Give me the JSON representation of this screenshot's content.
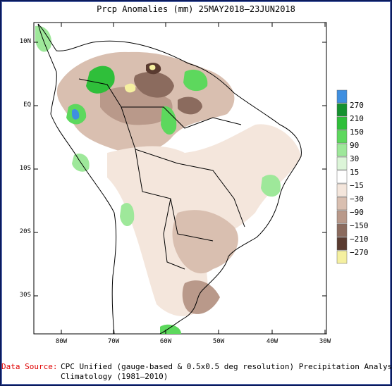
{
  "title": "Prcp Anomalies (mm) 25MAY2018–23JUN2018",
  "latitude_labels": [
    "10N",
    "EQ",
    "10S",
    "20S",
    "30S"
  ],
  "longitude_labels": [
    "80W",
    "70W",
    "60W",
    "50W",
    "40W",
    "30W"
  ],
  "legend": {
    "labels": [
      "270",
      "210",
      "150",
      "90",
      "30",
      "15",
      "−15",
      "−30",
      "−90",
      "−150",
      "−210",
      "−270"
    ],
    "colors": [
      "#3f8fe0",
      "#15912f",
      "#2fbf3a",
      "#5dd85d",
      "#9ee89a",
      "#dcf5d8",
      "#ffffff",
      "#f4e6dc",
      "#d9bfb0",
      "#b9998a",
      "#8b6b5e",
      "#5a3b30",
      "#f5f0a0"
    ]
  },
  "source": {
    "label": "Data Source:",
    "line1": "CPC Unified (gauge-based & 0.5x0.5 deg resolution) Precipitation Analysis",
    "line2": "Climatology (1981–2010)"
  }
}
